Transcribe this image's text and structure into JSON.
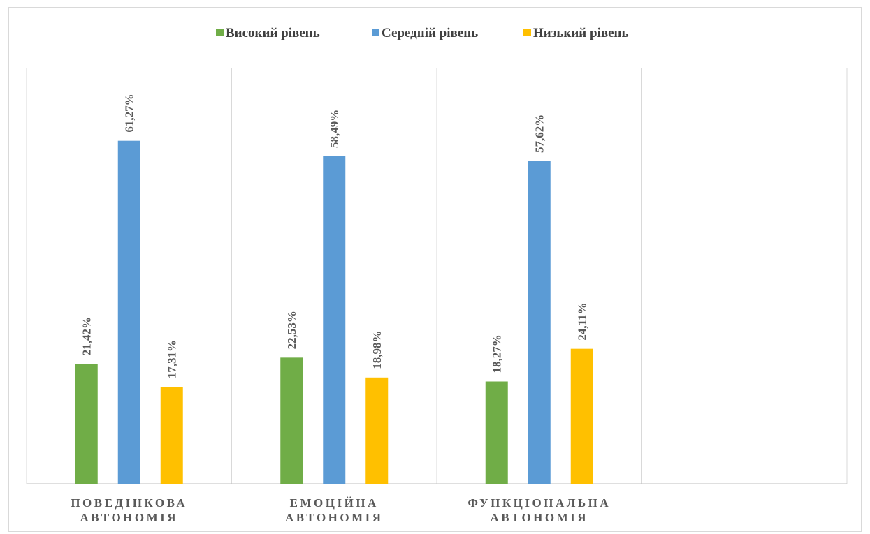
{
  "chart_data": {
    "type": "bar",
    "title": "",
    "xlabel": "",
    "ylabel": "",
    "categories": [
      [
        "ПОВЕДІНКОВА",
        "АВТОНОМІЯ"
      ],
      [
        "ЕМОЦІЙНА",
        "АВТОНОМІЯ"
      ],
      [
        "ФУНКЦІОНАЛЬНА",
        "АВТОНОМІЯ"
      ],
      [
        "",
        ""
      ]
    ],
    "series": [
      {
        "name": "Високий рівень",
        "color": "#70ad47",
        "values": [
          21.42,
          22.53,
          18.27,
          null
        ],
        "labels": [
          "21,42%",
          "22,53%",
          "18,27%",
          ""
        ]
      },
      {
        "name": "Середній рівень",
        "color": "#5b9bd5",
        "values": [
          61.27,
          58.49,
          57.62,
          null
        ],
        "labels": [
          "61,27%",
          "58,49%",
          "57,62%",
          ""
        ]
      },
      {
        "name": "Низький рівень",
        "color": "#ffc000",
        "values": [
          17.31,
          18.98,
          24.11,
          null
        ],
        "labels": [
          "17,31%",
          "18,98%",
          "24,11%",
          ""
        ]
      }
    ],
    "ylim": [
      0,
      70
    ],
    "grid": "vertical category separators",
    "legend": "top-center"
  }
}
